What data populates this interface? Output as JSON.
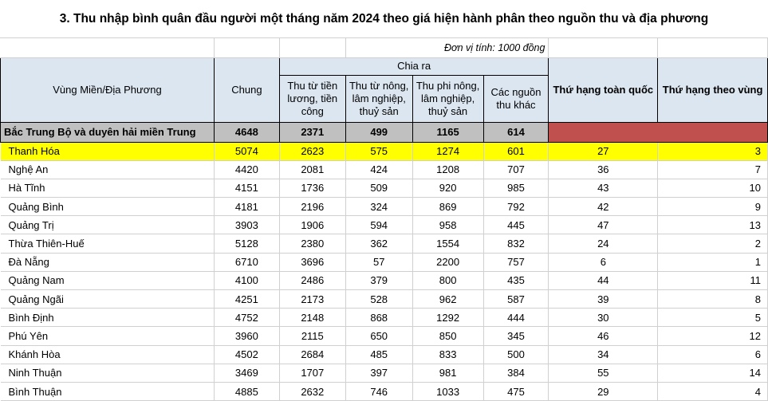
{
  "title": "3. Thu nhập bình quân đầu người một tháng năm 2024 theo giá hiện hành phân theo nguồn thu và địa phương",
  "unit": "Đơn vị tính: 1000 đồng",
  "headers": {
    "region": "Vùng Miền/Địa Phương",
    "total": "Chung",
    "breakdown": "Chia ra",
    "wages": "Thu từ tiền lương, tiền công",
    "agri": "Thu từ nông, lâm nghiệp, thuỷ sản",
    "nonagri": "Thu phi nông, lâm nghiệp, thuỷ sản",
    "other": "Các nguồn thu khác",
    "rank_nation": "Thứ hạng toàn quốc",
    "rank_region": "Thứ hạng theo vùng"
  },
  "region_row": {
    "name": "Bắc Trung Bộ và duyên hải miền Trung",
    "total": "4648",
    "wages": "2371",
    "agri": "499",
    "nonagri": "1165",
    "other": "614"
  },
  "rows": [
    {
      "name": "Thanh Hóa",
      "total": "5074",
      "wages": "2623",
      "agri": "575",
      "nonagri": "1274",
      "other": "601",
      "rank_nation": "27",
      "rank_region": "3"
    },
    {
      "name": "Nghệ An",
      "total": "4420",
      "wages": "2081",
      "agri": "424",
      "nonagri": "1208",
      "other": "707",
      "rank_nation": "36",
      "rank_region": "7"
    },
    {
      "name": "Hà Tĩnh",
      "total": "4151",
      "wages": "1736",
      "agri": "509",
      "nonagri": "920",
      "other": "985",
      "rank_nation": "43",
      "rank_region": "10"
    },
    {
      "name": "Quảng Bình",
      "total": "4181",
      "wages": "2196",
      "agri": "324",
      "nonagri": "869",
      "other": "792",
      "rank_nation": "42",
      "rank_region": "9"
    },
    {
      "name": "Quảng Trị",
      "total": "3903",
      "wages": "1906",
      "agri": "594",
      "nonagri": "958",
      "other": "445",
      "rank_nation": "47",
      "rank_region": "13"
    },
    {
      "name": "Thừa Thiên-Huế",
      "total": "5128",
      "wages": "2380",
      "agri": "362",
      "nonagri": "1554",
      "other": "832",
      "rank_nation": "24",
      "rank_region": "2"
    },
    {
      "name": "Đà Nẵng",
      "total": "6710",
      "wages": "3696",
      "agri": "57",
      "nonagri": "2200",
      "other": "757",
      "rank_nation": "6",
      "rank_region": "1"
    },
    {
      "name": "Quảng  Nam",
      "total": "4100",
      "wages": "2486",
      "agri": "379",
      "nonagri": "800",
      "other": "435",
      "rank_nation": "44",
      "rank_region": "11"
    },
    {
      "name": "Quảng  Ngãi",
      "total": "4251",
      "wages": "2173",
      "agri": "528",
      "nonagri": "962",
      "other": "587",
      "rank_nation": "39",
      "rank_region": "8"
    },
    {
      "name": "Bình Định",
      "total": "4752",
      "wages": "2148",
      "agri": "868",
      "nonagri": "1292",
      "other": "444",
      "rank_nation": "30",
      "rank_region": "5"
    },
    {
      "name": "Phú Yên",
      "total": "3960",
      "wages": "2115",
      "agri": "650",
      "nonagri": "850",
      "other": "345",
      "rank_nation": "46",
      "rank_region": "12"
    },
    {
      "name": "Khánh  Hòa",
      "total": "4502",
      "wages": "2684",
      "agri": "485",
      "nonagri": "833",
      "other": "500",
      "rank_nation": "34",
      "rank_region": "6"
    },
    {
      "name": "Ninh  Thuận",
      "total": "3469",
      "wages": "1707",
      "agri": "397",
      "nonagri": "981",
      "other": "384",
      "rank_nation": "55",
      "rank_region": "14"
    },
    {
      "name": "Bình Thuận",
      "total": "4885",
      "wages": "2632",
      "agri": "746",
      "nonagri": "1033",
      "other": "475",
      "rank_nation": "29",
      "rank_region": "4"
    }
  ]
}
